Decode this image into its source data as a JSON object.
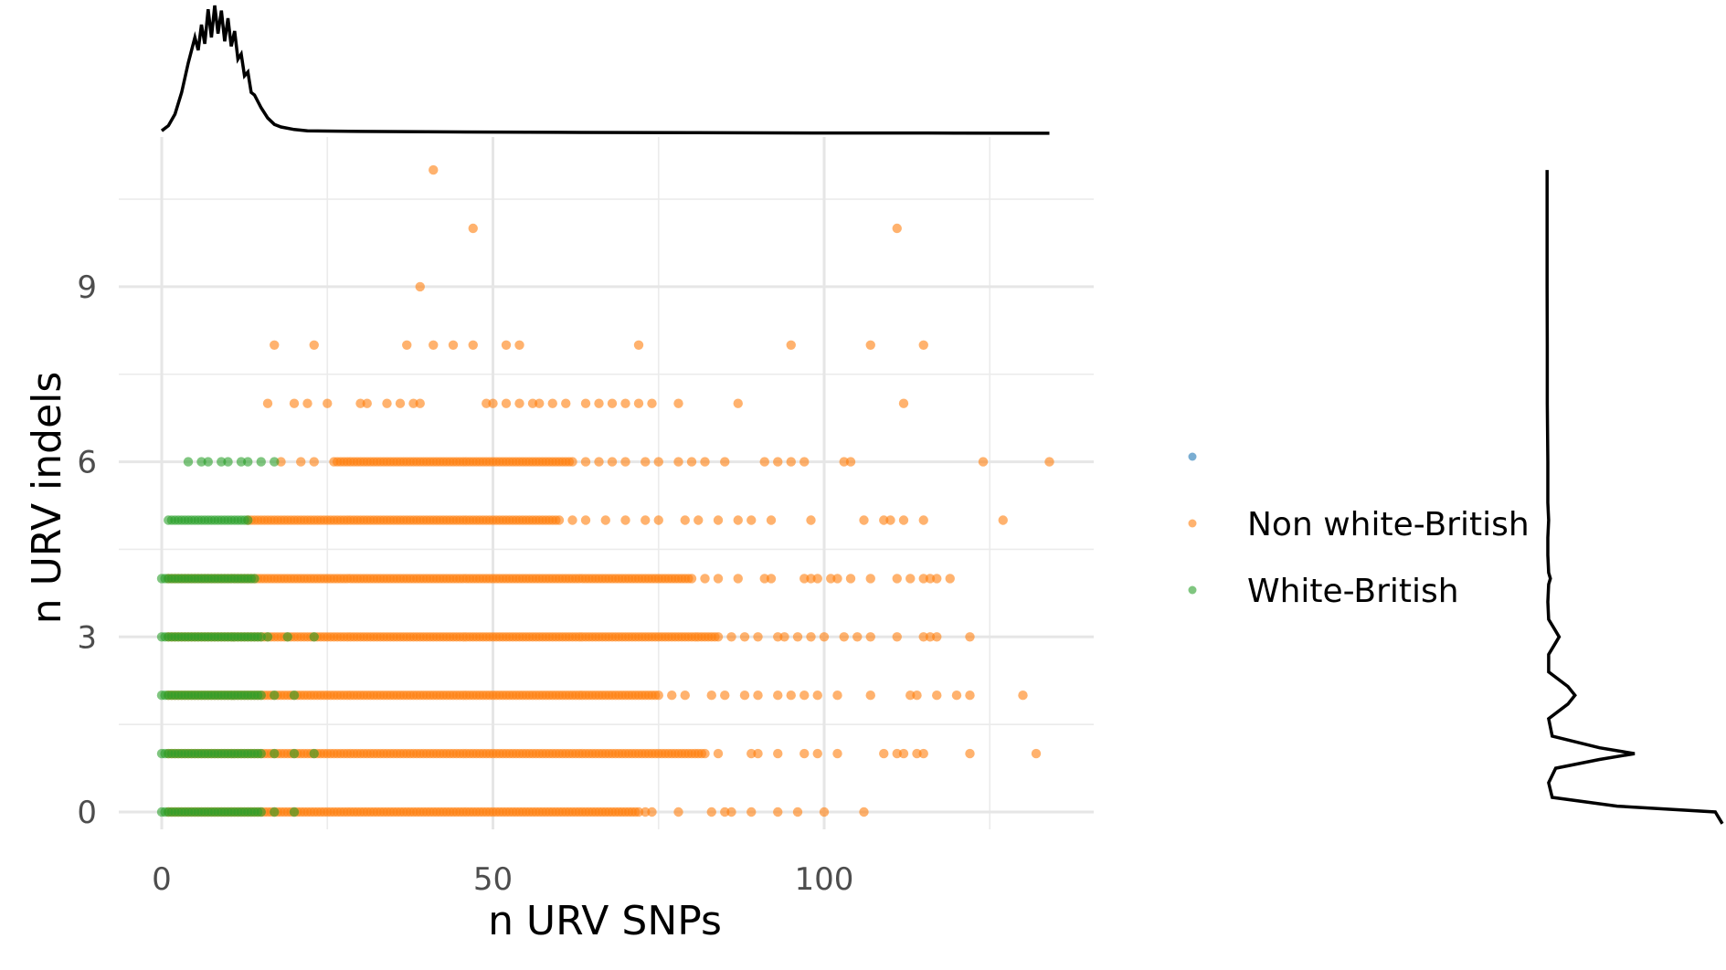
{
  "chart_data": {
    "type": "scatter",
    "title": "",
    "xlabel": "n URV SNPs",
    "ylabel": "n URV indels",
    "xlim": [
      -6,
      141
    ],
    "ylim": [
      -0.5,
      11.3
    ],
    "x_ticks": [
      0,
      50,
      100
    ],
    "x_tick_labels": [
      "0",
      "50",
      "100"
    ],
    "x_minor_ticks": [
      25,
      75,
      125
    ],
    "y_ticks": [
      0,
      3,
      6,
      9
    ],
    "y_tick_labels": [
      "0",
      "3",
      "6",
      "9"
    ],
    "y_minor_ticks": [
      1.5,
      4.5,
      7.5,
      10.5
    ],
    "grid": true,
    "legend_position": "right",
    "colors": {
      "blank": "#1f77b4",
      "non_white_british": "#ff7f0e",
      "white_british": "#2ca02c",
      "grid": "#ebebeb",
      "density": "#000000"
    },
    "series": [
      {
        "name": "",
        "color": "#1f77b4",
        "points": []
      },
      {
        "name": "Non white-British",
        "color": "#ff7f0e",
        "segments": [
          {
            "y": 0,
            "x_from": 1,
            "x_to": 72
          },
          {
            "y": 1,
            "x_from": 1,
            "x_to": 82
          },
          {
            "y": 2,
            "x_from": 1,
            "x_to": 75
          },
          {
            "y": 3,
            "x_from": 1,
            "x_to": 84
          },
          {
            "y": 4,
            "x_from": 1,
            "x_to": 80
          },
          {
            "y": 5,
            "x_from": 13,
            "x_to": 60
          },
          {
            "y": 6,
            "x_from": 26,
            "x_to": 62
          }
        ],
        "points": [
          {
            "x": 41,
            "y": 11
          },
          {
            "x": 47,
            "y": 10
          },
          {
            "x": 111,
            "y": 10
          },
          {
            "x": 39,
            "y": 9
          },
          {
            "x": 17,
            "y": 8
          },
          {
            "x": 23,
            "y": 8
          },
          {
            "x": 37,
            "y": 8
          },
          {
            "x": 41,
            "y": 8
          },
          {
            "x": 44,
            "y": 8
          },
          {
            "x": 47,
            "y": 8
          },
          {
            "x": 52,
            "y": 8
          },
          {
            "x": 54,
            "y": 8
          },
          {
            "x": 72,
            "y": 8
          },
          {
            "x": 95,
            "y": 8
          },
          {
            "x": 107,
            "y": 8
          },
          {
            "x": 115,
            "y": 8
          },
          {
            "x": 16,
            "y": 7
          },
          {
            "x": 20,
            "y": 7
          },
          {
            "x": 22,
            "y": 7
          },
          {
            "x": 25,
            "y": 7
          },
          {
            "x": 30,
            "y": 7
          },
          {
            "x": 31,
            "y": 7
          },
          {
            "x": 34,
            "y": 7
          },
          {
            "x": 36,
            "y": 7
          },
          {
            "x": 38,
            "y": 7
          },
          {
            "x": 39,
            "y": 7
          },
          {
            "x": 49,
            "y": 7
          },
          {
            "x": 50,
            "y": 7
          },
          {
            "x": 52,
            "y": 7
          },
          {
            "x": 54,
            "y": 7
          },
          {
            "x": 56,
            "y": 7
          },
          {
            "x": 57,
            "y": 7
          },
          {
            "x": 59,
            "y": 7
          },
          {
            "x": 61,
            "y": 7
          },
          {
            "x": 64,
            "y": 7
          },
          {
            "x": 66,
            "y": 7
          },
          {
            "x": 68,
            "y": 7
          },
          {
            "x": 70,
            "y": 7
          },
          {
            "x": 72,
            "y": 7
          },
          {
            "x": 74,
            "y": 7
          },
          {
            "x": 78,
            "y": 7
          },
          {
            "x": 87,
            "y": 7
          },
          {
            "x": 112,
            "y": 7
          },
          {
            "x": 18,
            "y": 6
          },
          {
            "x": 21,
            "y": 6
          },
          {
            "x": 23,
            "y": 6
          },
          {
            "x": 64,
            "y": 6
          },
          {
            "x": 66,
            "y": 6
          },
          {
            "x": 68,
            "y": 6
          },
          {
            "x": 70,
            "y": 6
          },
          {
            "x": 73,
            "y": 6
          },
          {
            "x": 75,
            "y": 6
          },
          {
            "x": 78,
            "y": 6
          },
          {
            "x": 80,
            "y": 6
          },
          {
            "x": 82,
            "y": 6
          },
          {
            "x": 85,
            "y": 6
          },
          {
            "x": 91,
            "y": 6
          },
          {
            "x": 93,
            "y": 6
          },
          {
            "x": 95,
            "y": 6
          },
          {
            "x": 97,
            "y": 6
          },
          {
            "x": 103,
            "y": 6
          },
          {
            "x": 104,
            "y": 6
          },
          {
            "x": 124,
            "y": 6
          },
          {
            "x": 134,
            "y": 6
          },
          {
            "x": 62,
            "y": 5
          },
          {
            "x": 64,
            "y": 5
          },
          {
            "x": 67,
            "y": 5
          },
          {
            "x": 70,
            "y": 5
          },
          {
            "x": 73,
            "y": 5
          },
          {
            "x": 75,
            "y": 5
          },
          {
            "x": 79,
            "y": 5
          },
          {
            "x": 81,
            "y": 5
          },
          {
            "x": 84,
            "y": 5
          },
          {
            "x": 87,
            "y": 5
          },
          {
            "x": 89,
            "y": 5
          },
          {
            "x": 92,
            "y": 5
          },
          {
            "x": 98,
            "y": 5
          },
          {
            "x": 106,
            "y": 5
          },
          {
            "x": 109,
            "y": 5
          },
          {
            "x": 110,
            "y": 5
          },
          {
            "x": 112,
            "y": 5
          },
          {
            "x": 115,
            "y": 5
          },
          {
            "x": 127,
            "y": 5
          },
          {
            "x": 82,
            "y": 4
          },
          {
            "x": 84,
            "y": 4
          },
          {
            "x": 87,
            "y": 4
          },
          {
            "x": 91,
            "y": 4
          },
          {
            "x": 92,
            "y": 4
          },
          {
            "x": 97,
            "y": 4
          },
          {
            "x": 98,
            "y": 4
          },
          {
            "x": 99,
            "y": 4
          },
          {
            "x": 101,
            "y": 4
          },
          {
            "x": 102,
            "y": 4
          },
          {
            "x": 104,
            "y": 4
          },
          {
            "x": 107,
            "y": 4
          },
          {
            "x": 111,
            "y": 4
          },
          {
            "x": 113,
            "y": 4
          },
          {
            "x": 115,
            "y": 4
          },
          {
            "x": 116,
            "y": 4
          },
          {
            "x": 117,
            "y": 4
          },
          {
            "x": 119,
            "y": 4
          },
          {
            "x": 86,
            "y": 3
          },
          {
            "x": 88,
            "y": 3
          },
          {
            "x": 90,
            "y": 3
          },
          {
            "x": 93,
            "y": 3
          },
          {
            "x": 94,
            "y": 3
          },
          {
            "x": 96,
            "y": 3
          },
          {
            "x": 98,
            "y": 3
          },
          {
            "x": 100,
            "y": 3
          },
          {
            "x": 103,
            "y": 3
          },
          {
            "x": 105,
            "y": 3
          },
          {
            "x": 107,
            "y": 3
          },
          {
            "x": 111,
            "y": 3
          },
          {
            "x": 115,
            "y": 3
          },
          {
            "x": 116,
            "y": 3
          },
          {
            "x": 117,
            "y": 3
          },
          {
            "x": 122,
            "y": 3
          },
          {
            "x": 77,
            "y": 2
          },
          {
            "x": 79,
            "y": 2
          },
          {
            "x": 83,
            "y": 2
          },
          {
            "x": 85,
            "y": 2
          },
          {
            "x": 88,
            "y": 2
          },
          {
            "x": 90,
            "y": 2
          },
          {
            "x": 93,
            "y": 2
          },
          {
            "x": 95,
            "y": 2
          },
          {
            "x": 97,
            "y": 2
          },
          {
            "x": 99,
            "y": 2
          },
          {
            "x": 102,
            "y": 2
          },
          {
            "x": 107,
            "y": 2
          },
          {
            "x": 113,
            "y": 2
          },
          {
            "x": 114,
            "y": 2
          },
          {
            "x": 117,
            "y": 2
          },
          {
            "x": 120,
            "y": 2
          },
          {
            "x": 122,
            "y": 2
          },
          {
            "x": 130,
            "y": 2
          },
          {
            "x": 84,
            "y": 1
          },
          {
            "x": 89,
            "y": 1
          },
          {
            "x": 90,
            "y": 1
          },
          {
            "x": 93,
            "y": 1
          },
          {
            "x": 97,
            "y": 1
          },
          {
            "x": 99,
            "y": 1
          },
          {
            "x": 102,
            "y": 1
          },
          {
            "x": 109,
            "y": 1
          },
          {
            "x": 111,
            "y": 1
          },
          {
            "x": 112,
            "y": 1
          },
          {
            "x": 114,
            "y": 1
          },
          {
            "x": 115,
            "y": 1
          },
          {
            "x": 122,
            "y": 1
          },
          {
            "x": 132,
            "y": 1
          },
          {
            "x": 73,
            "y": 0
          },
          {
            "x": 74,
            "y": 0
          },
          {
            "x": 78,
            "y": 0
          },
          {
            "x": 83,
            "y": 0
          },
          {
            "x": 85,
            "y": 0
          },
          {
            "x": 86,
            "y": 0
          },
          {
            "x": 89,
            "y": 0
          },
          {
            "x": 93,
            "y": 0
          },
          {
            "x": 96,
            "y": 0
          },
          {
            "x": 100,
            "y": 0
          },
          {
            "x": 106,
            "y": 0
          }
        ]
      },
      {
        "name": "White-British",
        "color": "#2ca02c",
        "segments": [
          {
            "y": 0,
            "x_from": 0,
            "x_to": 15
          },
          {
            "y": 1,
            "x_from": 0,
            "x_to": 15
          },
          {
            "y": 2,
            "x_from": 0,
            "x_to": 15
          },
          {
            "y": 3,
            "x_from": 0,
            "x_to": 15
          },
          {
            "y": 4,
            "x_from": 0,
            "x_to": 14
          },
          {
            "y": 5,
            "x_from": 1,
            "x_to": 13
          }
        ],
        "points": [
          {
            "x": 4,
            "y": 6
          },
          {
            "x": 6,
            "y": 6
          },
          {
            "x": 7,
            "y": 6
          },
          {
            "x": 9,
            "y": 6
          },
          {
            "x": 10,
            "y": 6
          },
          {
            "x": 12,
            "y": 6
          },
          {
            "x": 13,
            "y": 6
          },
          {
            "x": 15,
            "y": 6
          },
          {
            "x": 17,
            "y": 6
          },
          {
            "x": 16,
            "y": 3
          },
          {
            "x": 19,
            "y": 3
          },
          {
            "x": 23,
            "y": 3
          },
          {
            "x": 17,
            "y": 2
          },
          {
            "x": 20,
            "y": 2
          },
          {
            "x": 17,
            "y": 1
          },
          {
            "x": 20,
            "y": 1
          },
          {
            "x": 23,
            "y": 1
          },
          {
            "x": 17,
            "y": 0
          },
          {
            "x": 20,
            "y": 0
          }
        ]
      }
    ],
    "marginal_x_density": {
      "x": [
        0,
        1,
        2,
        3,
        4,
        5,
        5.5,
        6,
        6.5,
        7,
        7.5,
        8,
        8.5,
        9,
        9.5,
        10,
        10.5,
        11,
        11.5,
        12,
        12.5,
        13,
        13.5,
        14,
        15,
        16,
        17,
        18,
        20,
        22,
        25,
        30,
        40,
        60,
        80,
        100,
        120,
        134
      ],
      "density": [
        0.02,
        0.06,
        0.15,
        0.32,
        0.55,
        0.75,
        0.65,
        0.85,
        0.7,
        0.97,
        0.75,
        1.0,
        0.78,
        0.96,
        0.72,
        0.9,
        0.68,
        0.8,
        0.58,
        0.62,
        0.45,
        0.48,
        0.32,
        0.3,
        0.2,
        0.12,
        0.07,
        0.05,
        0.03,
        0.02,
        0.018,
        0.015,
        0.012,
        0.008,
        0.005,
        0.003,
        0.002,
        0.001
      ]
    },
    "marginal_y_density": {
      "y": [
        -0.2,
        0,
        0.1,
        0.25,
        0.5,
        0.75,
        0.9,
        1,
        1.1,
        1.3,
        1.6,
        1.85,
        2,
        2.15,
        2.4,
        2.7,
        2.9,
        3,
        3.1,
        3.3,
        3.6,
        3.9,
        4,
        4.1,
        4.4,
        4.7,
        5,
        5.3,
        5.7,
        6,
        7,
        8,
        9,
        10,
        11
      ],
      "density": [
        1.0,
        0.96,
        0.4,
        0.03,
        0.01,
        0.05,
        0.3,
        0.5,
        0.3,
        0.03,
        0.01,
        0.12,
        0.16,
        0.12,
        0.01,
        0.01,
        0.05,
        0.07,
        0.05,
        0.01,
        0.005,
        0.01,
        0.02,
        0.01,
        0.005,
        0.005,
        0.01,
        0.005,
        0.005,
        0.005,
        0.002,
        0.002,
        0.001,
        0.001,
        0.001
      ]
    }
  }
}
